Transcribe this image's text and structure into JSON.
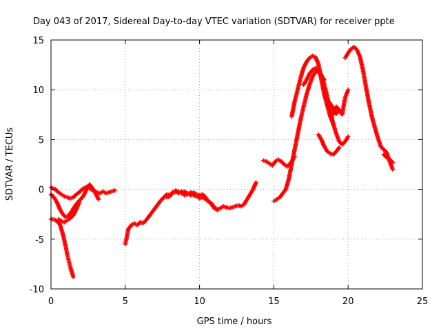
{
  "chart_data": {
    "type": "scatter",
    "title": "Day 043 of 2017, Sidereal Day-to-day VTEC variation (SDTVAR) for receiver ppte",
    "xlabel": "GPS time / hours",
    "ylabel": "SDTVAR / TECUs",
    "xlim": [
      0,
      25
    ],
    "ylim": [
      -10,
      15
    ],
    "xticks": [
      "0",
      "5",
      "10",
      "15",
      "20",
      "25"
    ],
    "yticks": [
      "-10",
      "-5",
      "0",
      "5",
      "10",
      "15"
    ],
    "grid": true,
    "marker": "plus",
    "color": "#ff0000",
    "series": [
      {
        "x": [
          0.0,
          0.3,
          0.5,
          0.7,
          0.9,
          1.1,
          1.3,
          1.5,
          1.7,
          1.9,
          2.1,
          2.3,
          2.5,
          2.7,
          2.9,
          3.1,
          3.3,
          3.5,
          3.7,
          3.9,
          4.1,
          4.3
        ],
        "y": [
          0.2,
          0.0,
          -0.3,
          -0.5,
          -0.7,
          -0.8,
          -0.9,
          -0.8,
          -0.5,
          -0.3,
          0.0,
          0.2,
          0.3,
          0.0,
          -0.2,
          -0.3,
          -0.4,
          -0.2,
          -0.4,
          -0.3,
          -0.2,
          -0.1
        ]
      },
      {
        "x": [
          0.0,
          0.2,
          0.4,
          0.6,
          0.8,
          1.0,
          1.2,
          1.4,
          1.6,
          1.8,
          2.0,
          2.2,
          2.4,
          2.6,
          2.8,
          3.0,
          3.2
        ],
        "y": [
          -0.5,
          -0.8,
          -1.3,
          -2.0,
          -2.5,
          -2.8,
          -2.6,
          -2.2,
          -1.7,
          -1.3,
          -1.0,
          -0.6,
          0.0,
          0.5,
          0.1,
          -0.4,
          -1.0
        ]
      },
      {
        "x": [
          0.0,
          0.2,
          0.4,
          0.6,
          0.8,
          1.0,
          1.1,
          1.2,
          1.3,
          1.4,
          1.5
        ],
        "y": [
          -3.0,
          -3.0,
          -3.2,
          -3.5,
          -4.5,
          -5.8,
          -6.6,
          -7.2,
          -7.8,
          -8.3,
          -8.8
        ]
      },
      {
        "x": [
          0.5,
          0.7,
          0.9,
          1.1,
          1.3,
          1.5,
          1.7,
          1.9
        ],
        "y": [
          -3.0,
          -3.2,
          -3.3,
          -3.1,
          -2.9,
          -2.6,
          -2.0,
          -1.3
        ]
      },
      {
        "x": [
          5.0,
          5.1,
          5.2,
          5.4,
          5.6,
          5.8,
          6.0,
          6.2,
          6.4,
          6.6,
          6.8,
          7.0,
          7.2,
          7.4,
          7.6,
          7.8,
          8.0,
          8.2,
          8.4,
          8.6,
          8.8,
          9.0,
          9.2,
          9.4,
          9.6,
          9.8,
          10.0,
          10.2,
          10.4,
          10.6,
          10.8,
          11.0,
          11.2,
          11.4,
          11.6,
          11.8,
          12.0,
          12.2,
          12.4,
          12.6,
          12.8,
          13.0,
          13.2,
          13.4,
          13.6,
          13.8
        ],
        "y": [
          -5.5,
          -4.8,
          -4.0,
          -3.6,
          -3.4,
          -3.6,
          -3.3,
          -3.4,
          -3.1,
          -2.7,
          -2.3,
          -1.9,
          -1.5,
          -1.1,
          -0.8,
          -0.5,
          -0.6,
          -0.3,
          -0.3,
          -0.2,
          -0.4,
          -0.2,
          -0.5,
          -0.3,
          -0.6,
          -0.7,
          -0.9,
          -0.8,
          -1.0,
          -1.2,
          -1.4,
          -1.8,
          -2.0,
          -1.9,
          -1.7,
          -1.8,
          -1.9,
          -1.8,
          -1.7,
          -1.6,
          -1.7,
          -1.5,
          -1.0,
          -0.5,
          0.0,
          0.7
        ]
      },
      {
        "x": [
          7.8,
          8.0,
          8.2,
          8.4,
          8.6,
          8.8,
          9.0,
          9.2,
          9.4,
          9.6,
          9.8,
          10.0,
          10.2,
          10.4,
          10.6,
          10.8,
          11.0,
          11.2
        ],
        "y": [
          -0.8,
          -0.7,
          -0.3,
          -0.1,
          -0.4,
          -0.2,
          -0.6,
          -0.4,
          -0.6,
          -0.3,
          -0.5,
          -0.6,
          -0.5,
          -0.8,
          -1.2,
          -1.5,
          -1.9,
          -2.1
        ]
      },
      {
        "x": [
          14.3,
          14.5,
          14.7,
          14.9,
          15.1,
          15.3,
          15.5,
          15.7,
          15.9,
          16.1,
          16.3,
          16.4
        ],
        "y": [
          2.9,
          2.8,
          2.6,
          2.4,
          2.8,
          3.0,
          2.8,
          2.5,
          2.3,
          2.6,
          3.0,
          3.3
        ]
      },
      {
        "x": [
          15.0,
          15.2,
          15.4,
          15.6,
          15.8,
          16.0,
          16.2,
          16.4,
          16.6,
          16.8,
          17.0,
          17.2,
          17.4,
          17.6,
          17.8,
          18.0,
          18.2,
          18.4,
          18.6,
          18.8,
          19.0
        ],
        "y": [
          -1.2,
          -1.0,
          -0.8,
          -0.4,
          0.0,
          1.0,
          2.5,
          4.0,
          5.5,
          7.0,
          8.3,
          9.5,
          10.5,
          11.3,
          11.8,
          12.0,
          11.5,
          10.5,
          9.3,
          8.0,
          6.5
        ]
      },
      {
        "x": [
          16.2,
          16.4,
          16.6,
          16.8,
          17.0,
          17.2,
          17.4,
          17.6,
          17.8,
          18.0,
          18.2,
          18.4,
          18.6,
          18.8,
          19.0,
          19.2,
          19.4,
          19.6,
          19.8,
          20.0
        ],
        "y": [
          7.3,
          8.8,
          10.0,
          11.2,
          12.2,
          12.8,
          13.2,
          13.4,
          13.3,
          12.6,
          11.0,
          9.5,
          8.4,
          7.3,
          6.6,
          5.6,
          4.8,
          4.5,
          4.8,
          5.3
        ]
      },
      {
        "x": [
          17.0,
          17.2,
          17.4,
          17.6,
          17.8,
          18.0,
          18.2,
          18.4
        ],
        "y": [
          10.5,
          11.0,
          11.6,
          12.0,
          12.2,
          11.8,
          11.4,
          11.0
        ]
      },
      {
        "x": [
          18.0,
          18.2,
          18.4,
          18.6,
          18.8,
          19.0,
          19.2,
          19.4
        ],
        "y": [
          5.5,
          5.0,
          4.3,
          3.8,
          3.6,
          3.5,
          3.8,
          4.2
        ]
      },
      {
        "x": [
          19.0,
          19.2,
          19.4,
          19.6,
          19.8,
          20.0
        ],
        "y": [
          7.5,
          8.3,
          8.0,
          7.5,
          9.2,
          10.0
        ]
      },
      {
        "x": [
          18.6,
          18.8,
          19.0,
          19.2,
          19.4
        ],
        "y": [
          9.0,
          8.6,
          8.1,
          7.6,
          7.9
        ]
      },
      {
        "x": [
          19.8,
          20.0,
          20.2,
          20.4,
          20.6,
          20.8,
          21.0,
          21.2,
          21.4,
          21.6,
          21.8,
          22.0,
          22.2,
          22.4,
          22.6,
          22.8,
          23.0
        ],
        "y": [
          13.2,
          13.7,
          14.1,
          14.3,
          14.0,
          13.3,
          12.0,
          10.3,
          8.7,
          7.3,
          6.2,
          5.2,
          4.3,
          4.0,
          3.7,
          2.8,
          2.0
        ]
      },
      {
        "x": [
          22.4,
          22.6,
          22.8,
          23.0
        ],
        "y": [
          3.5,
          3.2,
          3.0,
          2.7
        ]
      }
    ]
  }
}
